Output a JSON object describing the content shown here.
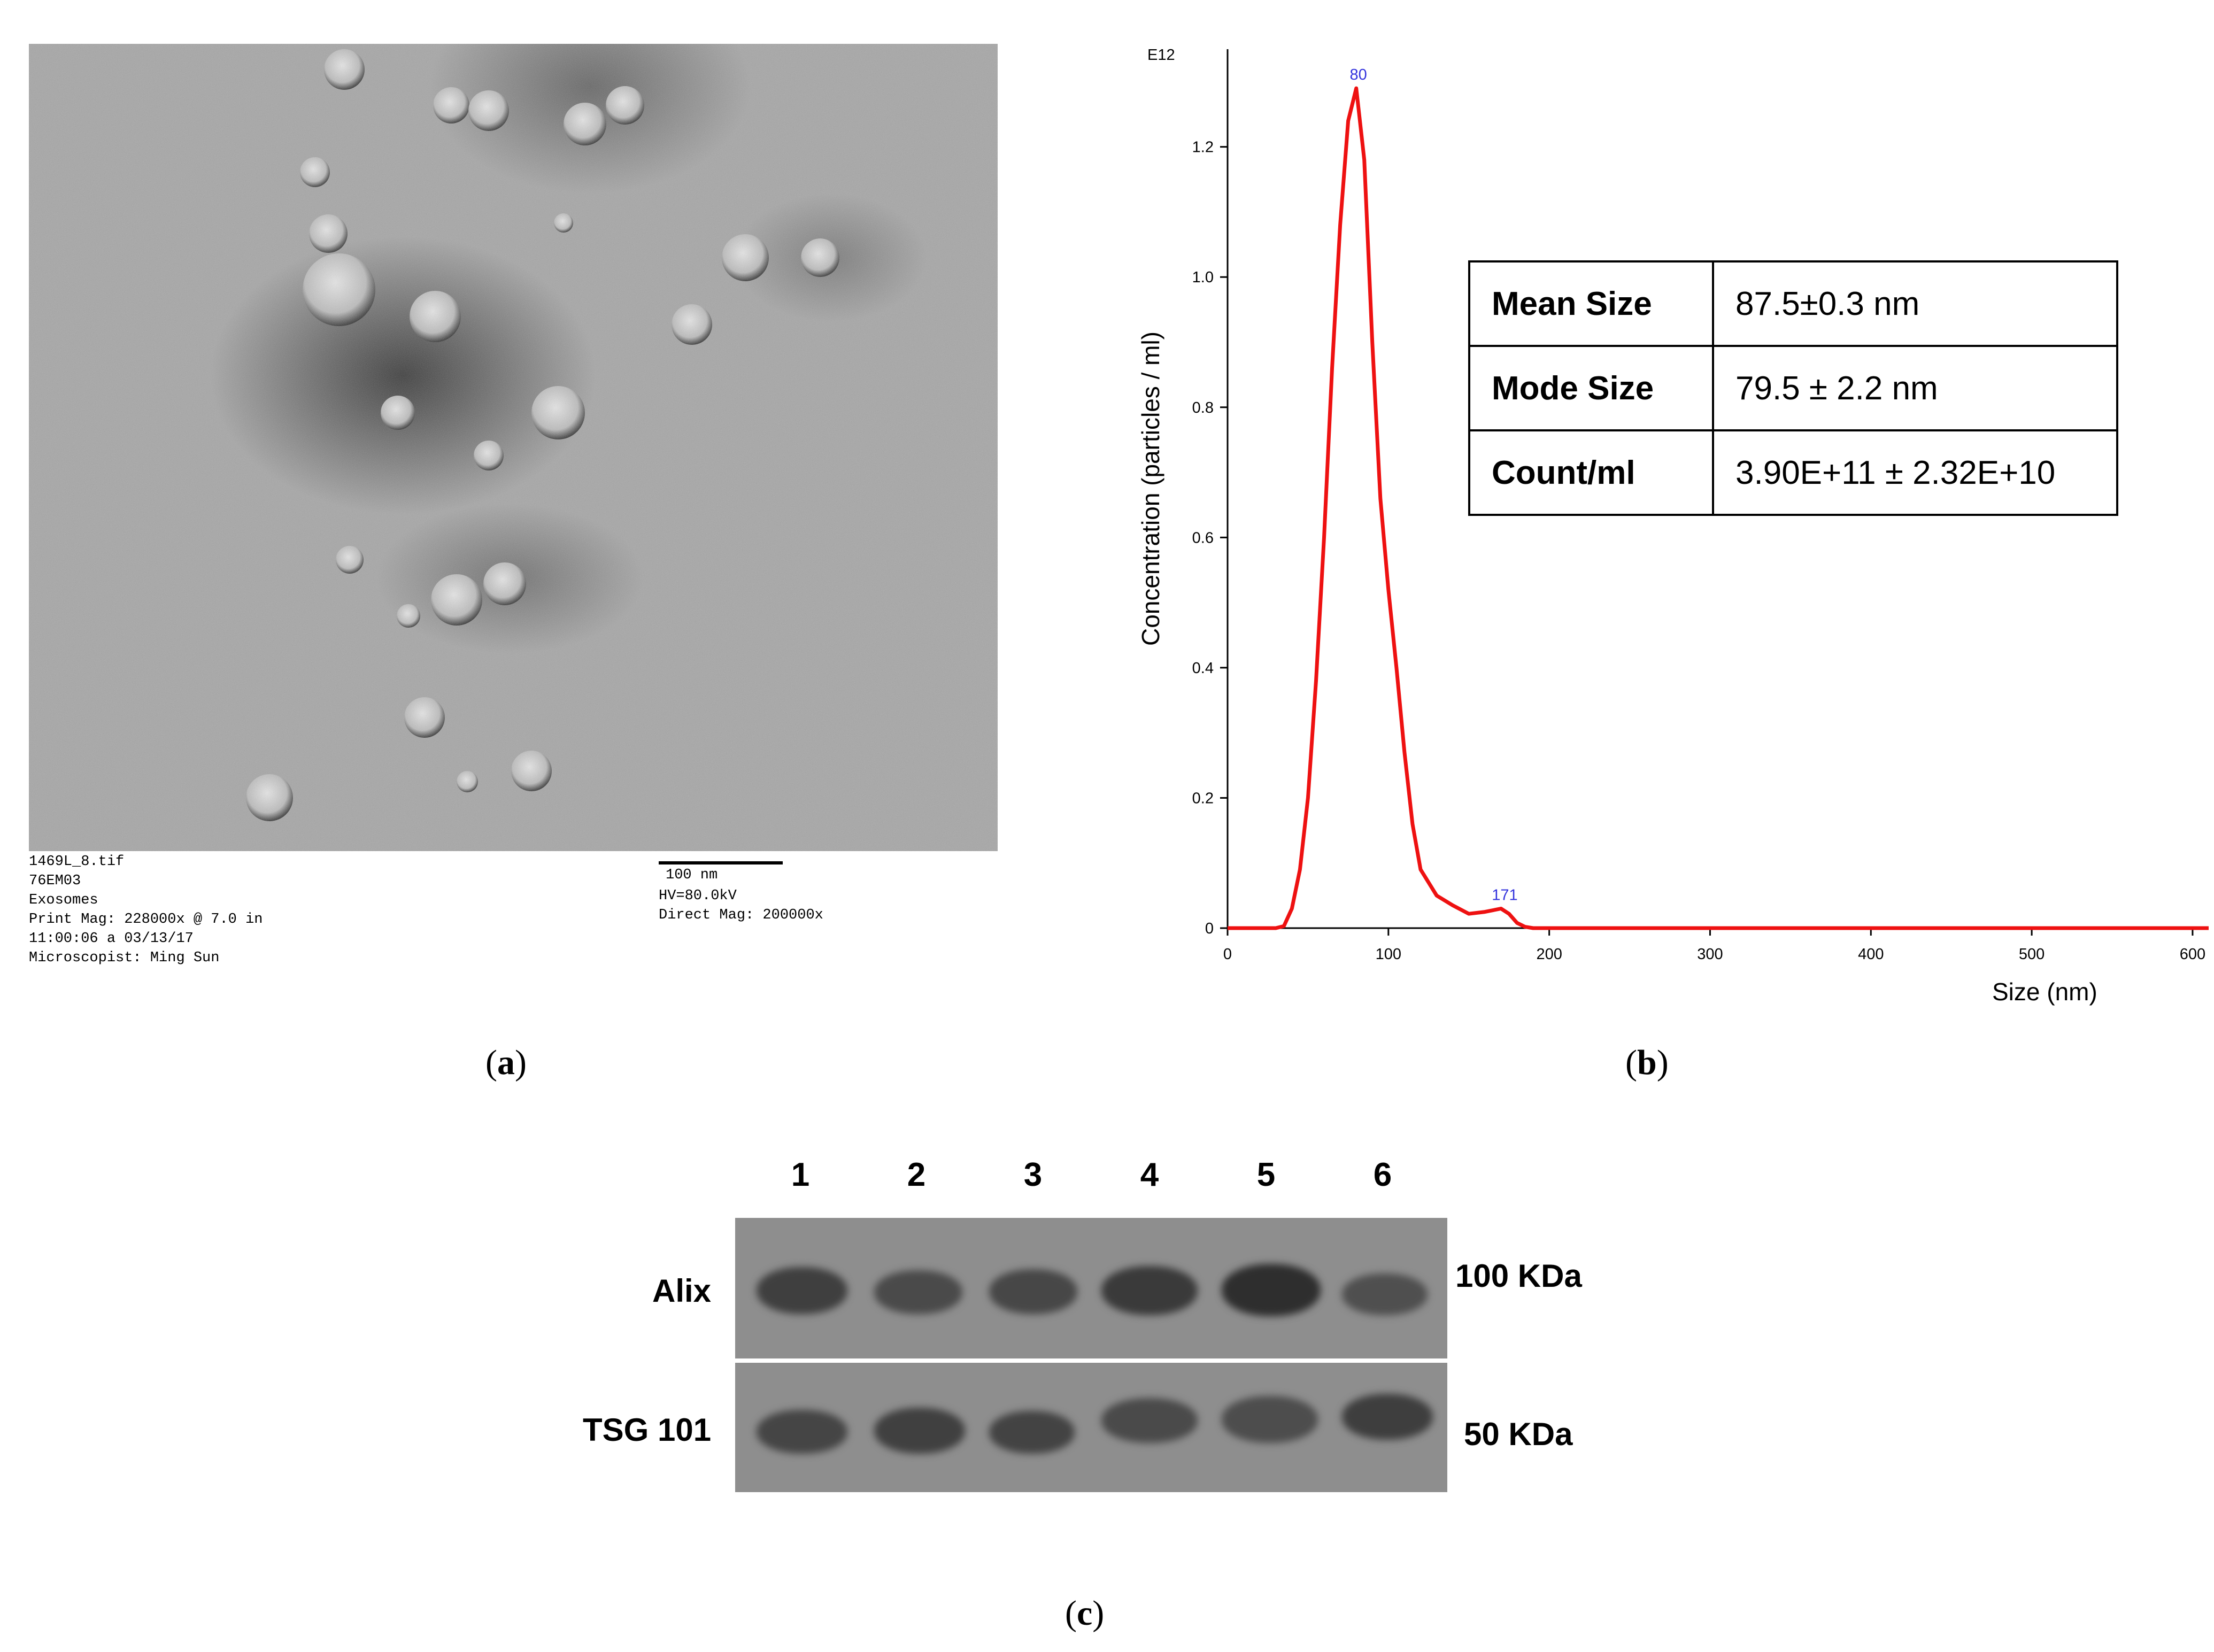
{
  "panel_a": {
    "label": "a",
    "meta_left": [
      "1469L_8.tif",
      "76EM03",
      "Exosomes",
      "Print Mag: 228000x @ 7.0 in",
      "11:00:06 a 03/13/17",
      "Microscopist: Ming Sun"
    ],
    "scale_label": "100 nm",
    "meta_right": [
      "HV=80.0kV",
      "Direct Mag: 200000x"
    ]
  },
  "panel_b": {
    "label": "b",
    "chart_data": {
      "type": "line",
      "exponent_label": "E12",
      "xlabel": "Size (nm)",
      "ylabel": "Concentration (particles / ml)",
      "xlim": [
        0,
        610
      ],
      "ylim": [
        0,
        1.35
      ],
      "x_ticks": [
        "0",
        "100",
        "200",
        "300",
        "400",
        "500",
        "600"
      ],
      "y_ticks": [
        "0",
        "0.2",
        "0.4",
        "0.6",
        "0.8",
        "1.0",
        "1.2"
      ],
      "grid": false,
      "series_color": "#ee1111",
      "peak_label_color": "#3333dd",
      "peak_labels": [
        {
          "text": "80",
          "x": 80,
          "y": 1.29
        },
        {
          "text": "171",
          "x": 171,
          "y": 0.03
        }
      ],
      "series": [
        {
          "x": [
            0,
            30,
            35,
            40,
            45,
            50,
            55,
            60,
            65,
            70,
            75,
            80,
            85,
            90,
            95,
            100,
            105,
            110,
            115,
            120,
            130,
            140,
            150,
            160,
            170,
            175,
            180,
            185,
            190,
            200,
            250,
            300,
            350,
            400,
            450,
            500,
            550,
            610
          ],
          "y": [
            0,
            0,
            0.003,
            0.03,
            0.09,
            0.2,
            0.38,
            0.6,
            0.86,
            1.08,
            1.24,
            1.29,
            1.18,
            0.9,
            0.66,
            0.52,
            0.4,
            0.27,
            0.16,
            0.09,
            0.05,
            0.035,
            0.022,
            0.025,
            0.03,
            0.022,
            0.008,
            0.002,
            0,
            0,
            0,
            0,
            0,
            0,
            0,
            0,
            0,
            0
          ]
        }
      ]
    },
    "table": [
      {
        "key": "Mean Size",
        "value": "87.5±0.3 nm"
      },
      {
        "key": "Mode Size",
        "value": "79.5 ± 2.2 nm"
      },
      {
        "key": "Count/ml",
        "value": "3.90E+11 ± 2.32E+10"
      }
    ]
  },
  "panel_c": {
    "label": "c",
    "lanes": [
      "1",
      "2",
      "3",
      "4",
      "5",
      "6"
    ],
    "rows": [
      {
        "protein": "Alix",
        "size": "100 KDa"
      },
      {
        "protein": "TSG 101",
        "size": "50 KDa"
      }
    ]
  }
}
